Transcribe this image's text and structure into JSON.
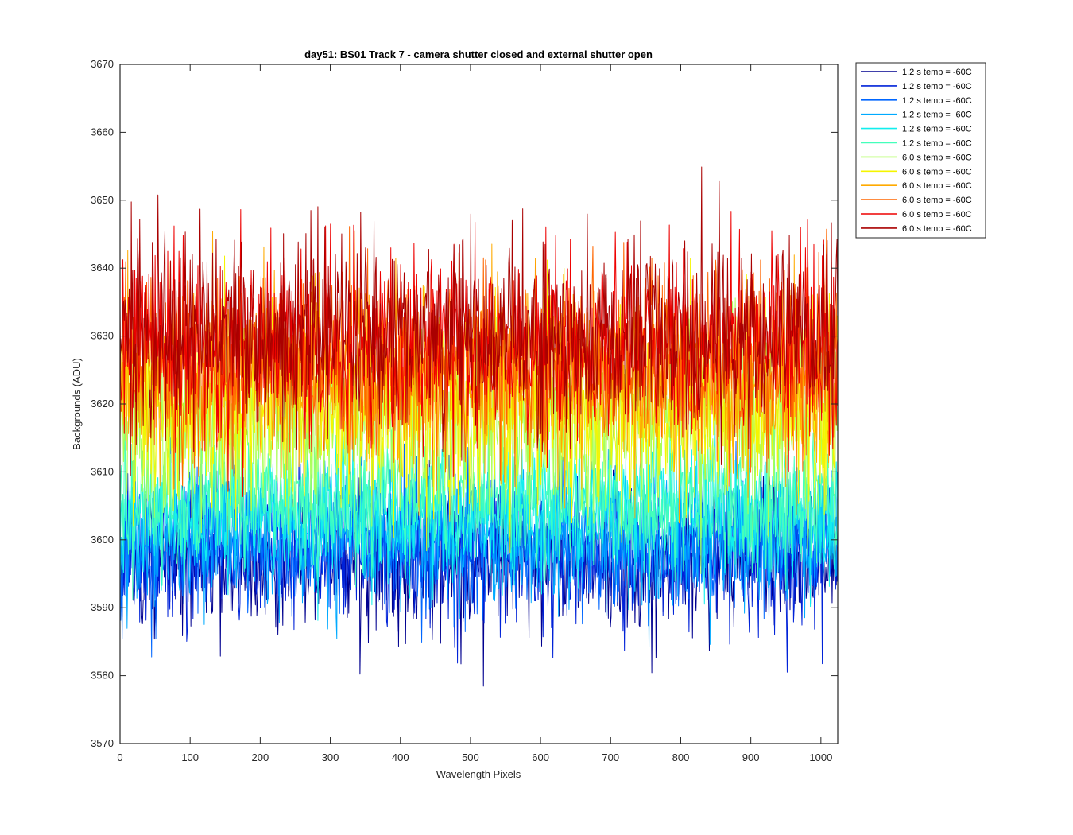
{
  "chart_data": {
    "type": "line",
    "title": "day51: BS01  Track 7 - camera shutter closed and external shutter open",
    "xlabel": "Wavelength Pixels",
    "ylabel": "Backgrounds (ADU)",
    "xlim": [
      0,
      1024
    ],
    "ylim": [
      3570,
      3670
    ],
    "xticks": [
      0,
      100,
      200,
      300,
      400,
      500,
      600,
      700,
      800,
      900,
      1000
    ],
    "yticks": [
      3570,
      3580,
      3590,
      3600,
      3610,
      3620,
      3630,
      3640,
      3650,
      3660,
      3670
    ],
    "grid": false,
    "legend_location": "outside-top-right",
    "n_points_per_series": 1024,
    "series": [
      {
        "name": "1.2 s temp = -60C",
        "color": "#00008f",
        "mean": 3597,
        "spread": 5,
        "min": 3571,
        "max": 3612
      },
      {
        "name": "1.2 s temp = -60C",
        "color": "#0022d8",
        "mean": 3598,
        "spread": 5,
        "min": 3572,
        "max": 3614
      },
      {
        "name": "1.2 s temp = -60C",
        "color": "#0066ff",
        "mean": 3600,
        "spread": 5,
        "min": 3574,
        "max": 3615
      },
      {
        "name": "1.2 s temp = -60C",
        "color": "#00aaff",
        "mean": 3601,
        "spread": 5,
        "min": 3578,
        "max": 3617
      },
      {
        "name": "1.2 s temp = -60C",
        "color": "#11eeee",
        "mean": 3604,
        "spread": 5,
        "min": 3580,
        "max": 3619
      },
      {
        "name": "1.2 s temp = -60C",
        "color": "#44ffbb",
        "mean": 3606,
        "spread": 5,
        "min": 3576,
        "max": 3620
      },
      {
        "name": "6.0 s temp = -60C",
        "color": "#aaff55",
        "mean": 3617,
        "spread": 7,
        "min": 3595,
        "max": 3652
      },
      {
        "name": "6.0 s temp = -60C",
        "color": "#f5f500",
        "mean": 3620,
        "spread": 7,
        "min": 3598,
        "max": 3653
      },
      {
        "name": "6.0 s temp = -60C",
        "color": "#ffaa00",
        "mean": 3624,
        "spread": 7,
        "min": 3600,
        "max": 3657
      },
      {
        "name": "6.0 s temp = -60C",
        "color": "#ff6600",
        "mean": 3626,
        "spread": 7,
        "min": 3602,
        "max": 3659
      },
      {
        "name": "6.0 s temp = -60C",
        "color": "#ee0000",
        "mean": 3629,
        "spread": 7,
        "min": 3606,
        "max": 3660
      },
      {
        "name": "6.0 s temp = -60C",
        "color": "#aa0000",
        "mean": 3631,
        "spread": 7,
        "min": 3608,
        "max": 3661
      }
    ]
  }
}
